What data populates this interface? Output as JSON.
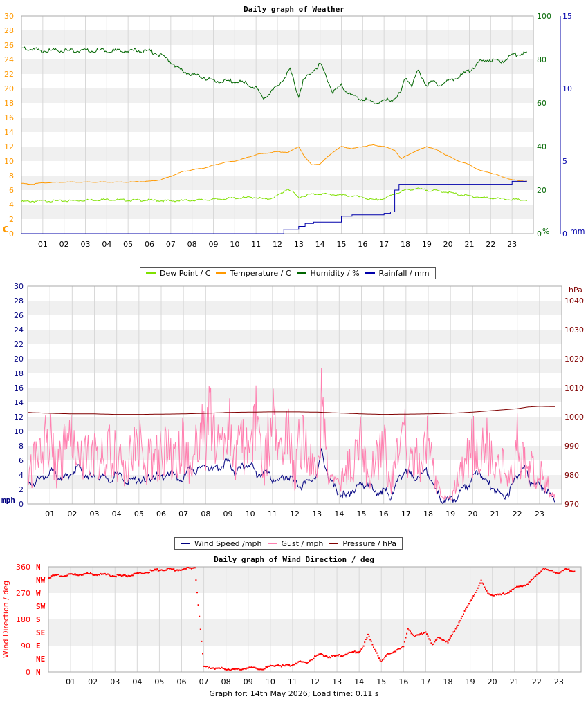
{
  "footer": "Graph for: 14th May 2026; Load time: 0.11 s",
  "chart_data": [
    {
      "type": "line",
      "title": "Daily graph of Weather",
      "x_ticks": [
        "01",
        "02",
        "03",
        "04",
        "05",
        "06",
        "07",
        "08",
        "09",
        "10",
        "11",
        "12",
        "13",
        "14",
        "15",
        "16",
        "17",
        "18",
        "19",
        "20",
        "21",
        "22",
        "23"
      ],
      "x_range": [
        0,
        24
      ],
      "left_axis": {
        "unit": "C",
        "range": [
          0,
          30
        ],
        "ticks": [
          "0",
          "2",
          "4",
          "6",
          "8",
          "10",
          "12",
          "14",
          "16",
          "18",
          "20",
          "22",
          "24",
          "26",
          "28",
          "30"
        ],
        "color": "#ff9900"
      },
      "right_axis_1": {
        "unit": "%",
        "range": [
          0,
          100
        ],
        "ticks": [
          "0",
          "20",
          "40",
          "60",
          "80",
          "100"
        ],
        "color": "#006600"
      },
      "right_axis_2": {
        "unit": "mm",
        "range": [
          0,
          15
        ],
        "ticks": [
          "0",
          "5",
          "10",
          "15"
        ],
        "color": "#0000aa"
      },
      "legend": [
        "Dew Point / C",
        "Temperature / C",
        "Humidity / %",
        "Rainfall / mm"
      ],
      "series": [
        {
          "name": "Dew Point / C",
          "axis": "left",
          "color": "#7fe000",
          "x": [
            0,
            1,
            2,
            3,
            4,
            5,
            6,
            7,
            8,
            9,
            10,
            11,
            11.5,
            12,
            12.5,
            13,
            13.5,
            14,
            14.5,
            15,
            15.5,
            16,
            16.5,
            17,
            17.5,
            18,
            18.5,
            19,
            19.5,
            20,
            20.5,
            21,
            21.5,
            22,
            22.5,
            23,
            23.7
          ],
          "y": [
            4.4,
            4.5,
            4.5,
            4.6,
            4.7,
            4.6,
            4.6,
            4.5,
            4.6,
            4.7,
            4.9,
            5.0,
            4.7,
            5.2,
            6.2,
            5.0,
            5.4,
            5.5,
            5.4,
            5.3,
            5.2,
            5.0,
            4.6,
            4.8,
            5.5,
            6.0,
            6.2,
            6.0,
            5.9,
            5.7,
            5.4,
            5.2,
            5.0,
            4.9,
            4.8,
            4.7,
            4.6
          ]
        },
        {
          "name": "Temperature / C",
          "axis": "left",
          "color": "#ff9900",
          "x": [
            0,
            0.5,
            1,
            2,
            3,
            4,
            5,
            6,
            6.5,
            7,
            7.5,
            8,
            8.5,
            9,
            9.5,
            10,
            10.5,
            11,
            11.5,
            12,
            12.5,
            13,
            13.3,
            13.6,
            14,
            14.5,
            15,
            15.5,
            16,
            16.5,
            17,
            17.5,
            17.8,
            18.2,
            18.6,
            19,
            19.5,
            20,
            20.5,
            21,
            21.5,
            22,
            22.5,
            23,
            23.7
          ],
          "y": [
            6.9,
            6.8,
            7.0,
            7.1,
            7.1,
            7.1,
            7.1,
            7.2,
            7.4,
            7.9,
            8.5,
            8.8,
            9.0,
            9.4,
            9.8,
            10.0,
            10.4,
            10.9,
            11.1,
            11.3,
            11.2,
            12.0,
            10.5,
            9.5,
            9.6,
            11.0,
            12.0,
            11.7,
            12.0,
            12.2,
            12.0,
            11.5,
            10.3,
            11.0,
            11.5,
            12.0,
            11.5,
            10.7,
            10.0,
            9.5,
            8.7,
            8.4,
            7.9,
            7.4,
            7.2
          ]
        },
        {
          "name": "Humidity / %",
          "axis": "right1",
          "color": "#006600",
          "x": [
            0,
            0.3,
            1,
            2,
            3,
            4,
            5,
            6,
            6.5,
            7,
            7.5,
            8,
            8.5,
            9,
            9.5,
            10,
            10.5,
            11,
            11.3,
            11.8,
            12.2,
            12.6,
            13,
            13.2,
            13.6,
            14,
            14.3,
            14.6,
            15,
            15.5,
            16,
            16.5,
            17,
            17.5,
            17.8,
            18,
            18.3,
            18.6,
            19,
            19.3,
            19.6,
            20,
            20.5,
            21,
            21.5,
            22,
            22.5,
            23,
            23.7
          ],
          "y": [
            85,
            85,
            84,
            84,
            84,
            84,
            84,
            84,
            82,
            79,
            75,
            73,
            72,
            70,
            70,
            70,
            69,
            67,
            62,
            66,
            70,
            75,
            63,
            70,
            74,
            78,
            72,
            65,
            68,
            63,
            62,
            60,
            61,
            62,
            65,
            72,
            68,
            75,
            68,
            70,
            68,
            70,
            72,
            75,
            79,
            80,
            79,
            82,
            83
          ]
        },
        {
          "name": "Rainfall / mm",
          "axis": "right2",
          "color": "#0000aa",
          "x": [
            0,
            1,
            2,
            3,
            4,
            5,
            6,
            7,
            8,
            9,
            10,
            11,
            12,
            12.3,
            12.6,
            13,
            13.3,
            13.7,
            14,
            14.5,
            15,
            15.5,
            16,
            16.5,
            17,
            17.3,
            17.5,
            17.7,
            18,
            19,
            20,
            21,
            22,
            22.5,
            23,
            23.7
          ],
          "y": [
            0,
            0,
            0,
            0,
            0,
            0,
            0,
            0,
            0,
            0,
            0,
            0,
            0,
            0.3,
            0.3,
            0.5,
            0.7,
            0.8,
            0.8,
            0.8,
            1.2,
            1.3,
            1.3,
            1.3,
            1.4,
            1.5,
            3.0,
            3.4,
            3.4,
            3.4,
            3.4,
            3.4,
            3.4,
            3.4,
            3.6,
            3.6
          ]
        }
      ]
    },
    {
      "type": "line",
      "title": "",
      "x_ticks": [
        "01",
        "02",
        "03",
        "04",
        "05",
        "06",
        "07",
        "08",
        "09",
        "10",
        "11",
        "12",
        "13",
        "14",
        "15",
        "16",
        "17",
        "18",
        "19",
        "20",
        "21",
        "22",
        "23"
      ],
      "x_range": [
        0,
        24
      ],
      "left_axis": {
        "unit": "mph",
        "range": [
          0,
          30
        ],
        "ticks": [
          "0",
          "2",
          "4",
          "6",
          "8",
          "10",
          "12",
          "14",
          "16",
          "18",
          "20",
          "22",
          "24",
          "26",
          "28",
          "30"
        ],
        "color": "#000080"
      },
      "right_axis": {
        "unit": "hPa",
        "range": [
          970,
          1045
        ],
        "ticks": [
          "970",
          "980",
          "990",
          "1000",
          "1010",
          "1020",
          "1030",
          "1040"
        ],
        "color": "#800000"
      },
      "legend": [
        "Wind Speed /mph",
        "Gust / mph",
        "Pressure / hPa"
      ],
      "series": [
        {
          "name": "Wind Speed /mph",
          "axis": "left",
          "color": "#000080",
          "x": [
            0,
            0.3,
            0.6,
            1,
            1.3,
            1.6,
            2,
            2.3,
            2.6,
            3,
            3.3,
            3.6,
            4,
            4.3,
            4.6,
            5,
            5.3,
            5.6,
            6,
            6.3,
            6.6,
            7,
            7.3,
            7.6,
            8,
            8.3,
            8.6,
            9,
            9.3,
            9.6,
            10,
            10.3,
            10.6,
            11,
            11.3,
            11.6,
            12,
            12.3,
            12.6,
            13,
            13.2,
            13.4,
            13.6,
            14,
            14.3,
            14.6,
            15,
            15.3,
            15.6,
            16,
            16.3,
            16.6,
            17,
            17.3,
            17.6,
            18,
            18.3,
            18.6,
            19,
            19.3,
            19.6,
            20,
            20.3,
            20.6,
            21,
            21.3,
            21.6,
            22,
            22.3,
            22.6,
            23,
            23.3,
            23.7
          ],
          "y": [
            2.5,
            3.0,
            3.5,
            4.5,
            4.0,
            3.5,
            4.5,
            5.0,
            4.0,
            3.5,
            4.0,
            3.0,
            4.0,
            3.5,
            3.0,
            3.5,
            3.0,
            4.0,
            3.5,
            4.5,
            4.0,
            3.5,
            5.0,
            4.5,
            5.5,
            4.5,
            5.0,
            6.0,
            4.5,
            5.0,
            5.5,
            4.0,
            4.5,
            3.5,
            3.0,
            4.0,
            3.0,
            2.5,
            3.0,
            4.0,
            7.5,
            5.0,
            3.0,
            1.5,
            1.0,
            2.0,
            2.5,
            3.0,
            1.5,
            2.0,
            1.0,
            3.0,
            5.0,
            3.5,
            4.0,
            4.5,
            2.0,
            0.5,
            0.5,
            1.0,
            2.0,
            3.5,
            4.5,
            3.0,
            2.0,
            1.0,
            1.5,
            4.0,
            5.0,
            3.0,
            2.5,
            2.0,
            0.5
          ]
        },
        {
          "name": "Gust / mph",
          "axis": "left",
          "color": "#ff80b0",
          "x": [
            0,
            0.3,
            0.6,
            1,
            1.3,
            1.6,
            2,
            2.3,
            2.6,
            3,
            3.3,
            3.6,
            4,
            4.3,
            4.6,
            5,
            5.3,
            5.6,
            6,
            6.3,
            6.6,
            7,
            7.3,
            7.6,
            8,
            8.3,
            8.6,
            9,
            9.3,
            9.6,
            10,
            10.3,
            10.6,
            11,
            11.3,
            11.6,
            12,
            12.3,
            12.6,
            13,
            13.2,
            13.4,
            13.6,
            14,
            14.3,
            14.6,
            15,
            15.3,
            15.6,
            16,
            16.3,
            16.6,
            17,
            17.3,
            17.6,
            18,
            18.3,
            18.6,
            19,
            19.3,
            19.6,
            20,
            20.3,
            20.6,
            21,
            21.3,
            21.6,
            22,
            22.3,
            22.6,
            23,
            23.3,
            23.7
          ],
          "y": [
            4,
            7,
            9,
            11,
            6,
            9,
            11,
            7,
            10,
            9,
            7,
            10,
            8,
            6,
            9,
            10,
            6,
            9,
            8,
            11,
            7,
            12,
            6,
            14,
            10,
            17,
            8,
            16,
            7,
            12,
            9,
            15,
            6,
            14,
            8,
            13,
            5,
            12,
            7,
            9,
            17,
            8,
            4,
            3,
            6,
            8,
            11,
            4,
            7,
            10,
            3,
            9,
            11,
            6,
            8,
            10,
            4,
            1,
            1,
            4,
            6,
            10,
            8,
            11,
            5,
            7,
            4,
            11,
            8,
            6,
            5,
            4,
            1
          ]
        },
        {
          "name": "Pressure / hPa",
          "axis": "right",
          "color": "#800000",
          "x": [
            0,
            1,
            2,
            3,
            4,
            5,
            6,
            7,
            8,
            9,
            10,
            11,
            12,
            13,
            14,
            15,
            16,
            17,
            18,
            19,
            20,
            21,
            22,
            22.5,
            23,
            23.7
          ],
          "y": [
            1001.5,
            1001.2,
            1001.0,
            1001.0,
            1000.8,
            1000.8,
            1000.9,
            1001.0,
            1001.2,
            1001.5,
            1001.6,
            1001.7,
            1001.7,
            1001.6,
            1001.3,
            1001.0,
            1000.8,
            1000.9,
            1001.0,
            1001.2,
            1001.6,
            1002.2,
            1002.8,
            1003.4,
            1003.6,
            1003.5
          ]
        }
      ]
    },
    {
      "type": "scatter",
      "title": "Daily graph of Wind Direction / deg",
      "x_ticks": [
        "01",
        "02",
        "03",
        "04",
        "05",
        "06",
        "07",
        "08",
        "09",
        "10",
        "11",
        "12",
        "13",
        "14",
        "15",
        "16",
        "17",
        "18",
        "19",
        "20",
        "21",
        "22",
        "23"
      ],
      "x_range": [
        0,
        24
      ],
      "ylabel": "Wind Direction / deg",
      "y_range": [
        0,
        360
      ],
      "y_ticks": [
        "0",
        "90",
        "180",
        "270",
        "360"
      ],
      "compass_labels": [
        "N",
        "NE",
        "E",
        "SE",
        "S",
        "SW",
        "W",
        "NW",
        "N"
      ],
      "color": "#ff0000",
      "series": [
        {
          "name": "direction",
          "x": [
            0,
            0.3,
            0.6,
            1,
            1.3,
            1.6,
            2,
            2.3,
            2.6,
            3,
            3.3,
            3.6,
            4,
            4.3,
            4.6,
            5,
            5.3,
            5.6,
            6,
            6.3,
            6.6,
            7,
            7.3,
            7.6,
            8,
            8.3,
            8.6,
            9,
            9.3,
            9.6,
            10,
            10.3,
            10.6,
            11,
            11.3,
            11.6,
            12,
            12.3,
            12.6,
            13,
            13.3,
            13.6,
            14,
            14.2,
            14.4,
            14.6,
            15,
            15.3,
            15.6,
            16,
            16.2,
            16.5,
            16.8,
            17,
            17.3,
            17.6,
            18,
            19.5,
            19.8,
            20,
            20.3,
            20.6,
            21,
            21.3,
            21.6,
            22,
            22.3,
            22.6,
            23,
            23.3,
            23.7
          ],
          "y": [
            325,
            330,
            330,
            333,
            333,
            335,
            335,
            335,
            333,
            330,
            328,
            330,
            335,
            340,
            345,
            350,
            352,
            350,
            350,
            355,
            358,
            18,
            15,
            12,
            10,
            8,
            8,
            15,
            12,
            10,
            18,
            25,
            20,
            25,
            35,
            30,
            50,
            60,
            52,
            55,
            58,
            65,
            70,
            90,
            125,
            95,
            35,
            60,
            70,
            85,
            150,
            120,
            130,
            140,
            90,
            120,
            100,
            310,
            270,
            265,
            262,
            268,
            285,
            295,
            300,
            330,
            355,
            345,
            340,
            350,
            345
          ]
        }
      ]
    }
  ]
}
